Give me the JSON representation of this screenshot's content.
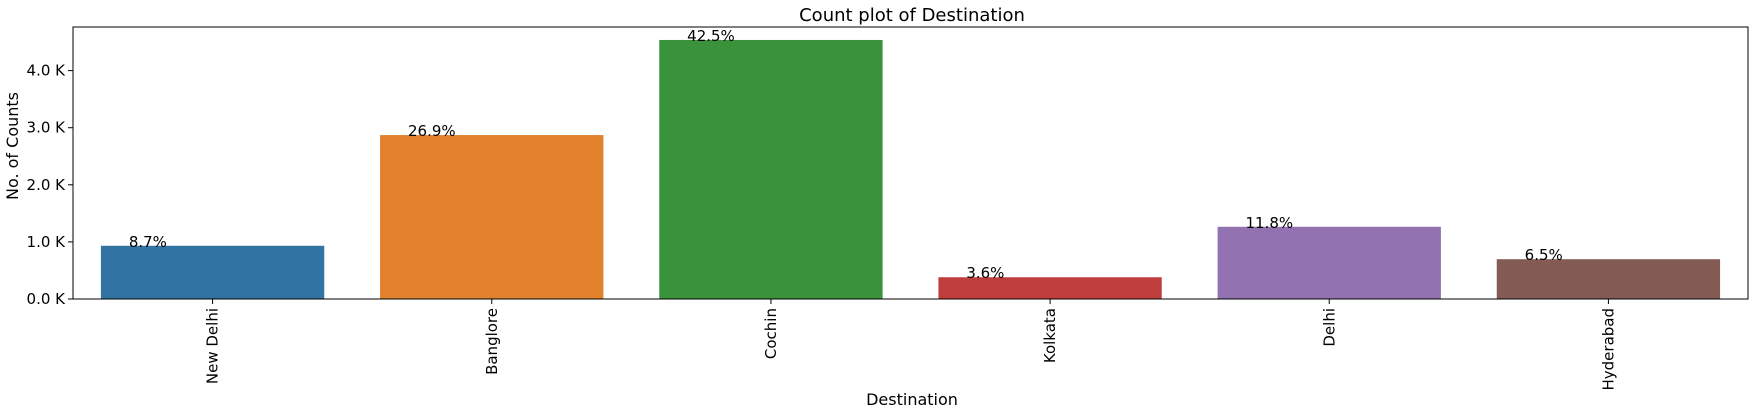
{
  "chart_data": {
    "type": "bar",
    "title": "Count plot of Destination",
    "xlabel": "Destination",
    "ylabel": "No. of Counts",
    "categories": [
      "New Delhi",
      "Banglore",
      "Cochin",
      "Kolkata",
      "Delhi",
      "Hyderabad"
    ],
    "values": [
      932,
      2871,
      4537,
      381,
      1265,
      697
    ],
    "data_labels": [
      "8.7%",
      "26.9%",
      "42.5%",
      "3.6%",
      "11.8%",
      "6.5%"
    ],
    "colors": [
      "#3274a1",
      "#e1812c",
      "#3a923a",
      "#c03d3e",
      "#9372b2",
      "#845b53"
    ],
    "ylim": [
      0,
      4764
    ],
    "yticks": [
      0,
      1000,
      2000,
      3000,
      4000
    ],
    "ytick_labels": [
      "0.0 K",
      "1.0 K",
      "2.0 K",
      "3.0 K",
      "4.0 K"
    ],
    "grid": false,
    "legend": "none"
  }
}
